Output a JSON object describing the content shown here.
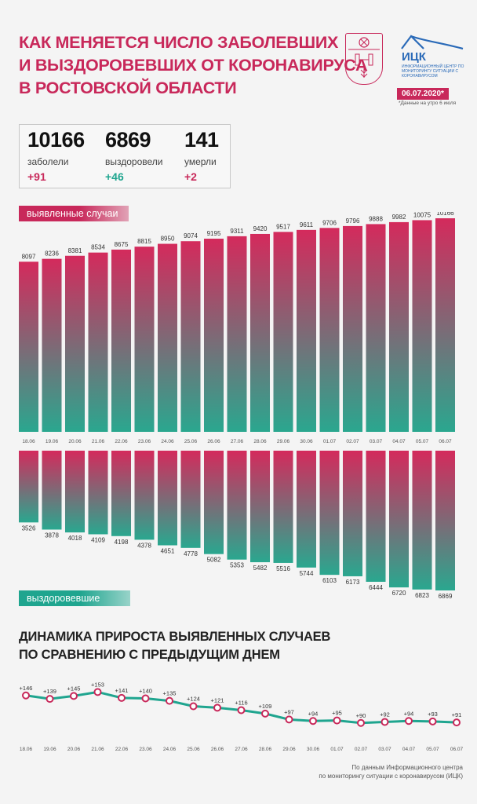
{
  "header": {
    "title_lines": [
      "КАК МЕНЯЕТСЯ ЧИСЛО ЗАБОЛЕВШИХ",
      "И ВЫЗДОРОВЕВШИХ ОТ КОРОНАВИРУСА",
      "В РОСТОВСКОЙ ОБЛАСТИ"
    ],
    "logo_name": "ИЦК",
    "logo_subtitle": "ИНФОРМАЦИОННЫЙ ЦЕНТР ПО МОНИТОРИНГУ СИТУАЦИИ С КОРОНАВИРУСОМ",
    "date": "06.07.2020*",
    "date_note": "*Данные на утро 6 июля",
    "accent_color": "#c8285a",
    "green_color": "#1fa58f"
  },
  "stats": [
    {
      "value": "10166",
      "label": "заболели",
      "delta": "+91",
      "delta_color": "#c8285a"
    },
    {
      "value": "6869",
      "label": "выздоровели",
      "delta": "+46",
      "delta_color": "#1fa58f"
    },
    {
      "value": "141",
      "label": "умерли",
      "delta": "+2",
      "delta_color": "#c8285a"
    }
  ],
  "labels": {
    "cases": "выявленные случаи",
    "recovered": "выздоровевшие"
  },
  "section": {
    "title_lines": [
      "ДИНАМИКА ПРИРОСТА ВЫЯВЛЕННЫХ СЛУЧАЕВ",
      "ПО СРАВНЕНИЮ С ПРЕДЫДУЩИМ ДНЕМ"
    ]
  },
  "footer": {
    "lines": [
      "По данным Информационного центра",
      "по мониторингу ситуации с коронавирусом (ИЦК)"
    ]
  },
  "chart_data": [
    {
      "type": "bar",
      "title": "выявленные случаи",
      "categories": [
        "18.06",
        "19.06",
        "20.06",
        "21.06",
        "22.06",
        "23.06",
        "24.06",
        "25.06",
        "26.06",
        "27.06",
        "28.06",
        "29.06",
        "30.06",
        "01.07",
        "02.07",
        "03.07",
        "04.07",
        "05.07",
        "06.07"
      ],
      "values": [
        8097,
        8236,
        8381,
        8534,
        8675,
        8815,
        8950,
        9074,
        9195,
        9311,
        9420,
        9517,
        9611,
        9706,
        9796,
        9888,
        9982,
        10075,
        10166
      ]
    },
    {
      "type": "bar",
      "title": "выздоровевшие",
      "categories": [
        "18.06",
        "19.06",
        "20.06",
        "21.06",
        "22.06",
        "23.06",
        "24.06",
        "25.06",
        "26.06",
        "27.06",
        "28.06",
        "29.06",
        "30.06",
        "01.07",
        "02.07",
        "03.07",
        "04.07",
        "05.07",
        "06.07"
      ],
      "values": [
        3526,
        3878,
        4018,
        4109,
        4198,
        4378,
        4651,
        4778,
        5082,
        5353,
        5482,
        5516,
        5744,
        6103,
        6173,
        6444,
        6720,
        6823,
        6869
      ]
    },
    {
      "type": "line",
      "categories": [
        "18.06",
        "19.06",
        "20.06",
        "21.06",
        "22.06",
        "23.06",
        "24.06",
        "25.06",
        "26.06",
        "27.06",
        "28.06",
        "29.06",
        "30.06",
        "01.07",
        "02.07",
        "03.07",
        "04.07",
        "05.07",
        "06.07"
      ],
      "values": [
        146,
        139,
        145,
        153,
        141,
        140,
        135,
        124,
        121,
        116,
        109,
        97,
        94,
        95,
        90,
        92,
        94,
        93,
        91
      ],
      "value_labels": [
        "+146",
        "+139",
        "+145",
        "+153",
        "+141",
        "+140",
        "+135",
        "+124",
        "+121",
        "+116",
        "+109",
        "+97",
        "+94",
        "+95",
        "+90",
        "+92",
        "+94",
        "+93",
        "+91"
      ]
    }
  ]
}
